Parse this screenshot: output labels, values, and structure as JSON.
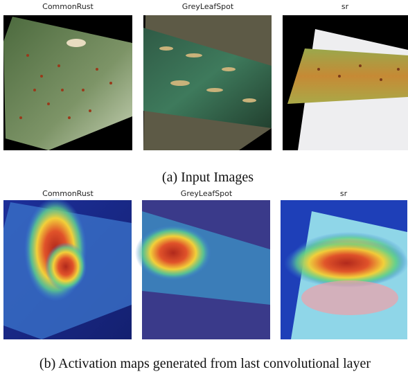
{
  "panel_a": {
    "titles": [
      "CommonRust",
      "GreyLeafSpot",
      "sr"
    ],
    "caption": "(a) Input Images"
  },
  "panel_b": {
    "titles": [
      "CommonRust",
      "GreyLeafSpot",
      "sr"
    ],
    "caption": "(b) Activation maps generated from last convolutional layer"
  }
}
